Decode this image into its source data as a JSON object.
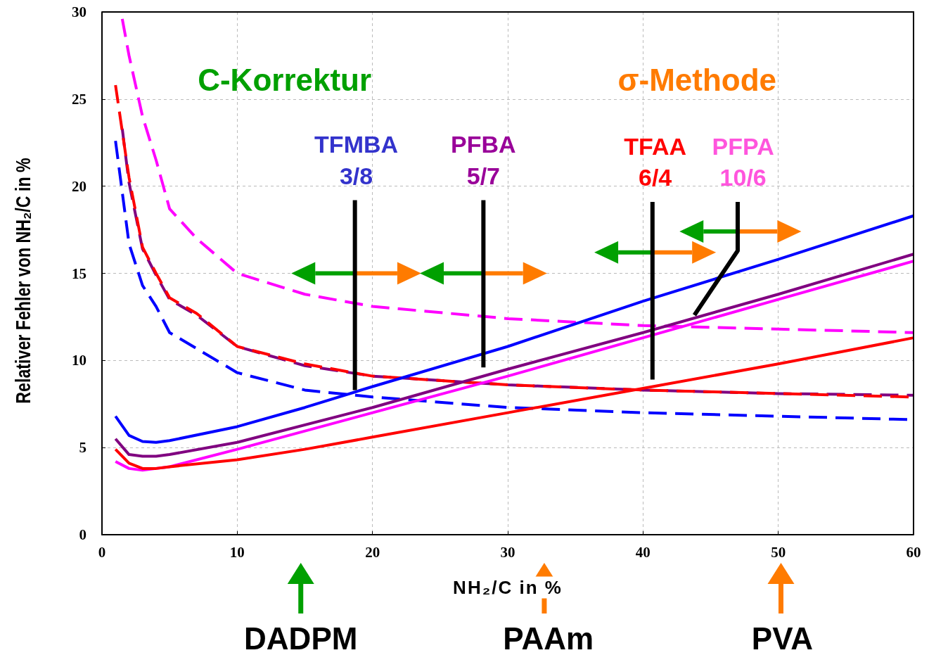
{
  "chart_data": {
    "type": "line",
    "xlabel": "NH₂/C in %",
    "ylabel": "Relativer Fehler von NH₂/C in %",
    "xlim": [
      0,
      60
    ],
    "xticks": [
      0,
      10,
      20,
      30,
      40,
      50,
      60
    ],
    "ylim": [
      0,
      30
    ],
    "yticks": [
      0,
      5,
      10,
      15,
      20,
      25,
      30
    ],
    "grid": true,
    "marker": "none",
    "series": [
      {
        "color": "#ff00ff",
        "line_style": "dashed",
        "x": [
          1.5,
          2,
          3,
          4,
          5,
          7,
          10,
          15,
          20,
          30,
          40,
          50,
          60
        ],
        "values": [
          29.6,
          27.5,
          24,
          21.5,
          18.7,
          17,
          15.0,
          13.8,
          13.1,
          12.4,
          12.0,
          11.8,
          11.6
        ]
      },
      {
        "color": "#800080",
        "line_style": "dashed",
        "x": [
          1.5,
          2,
          3,
          4,
          5,
          7,
          10,
          15,
          20,
          30,
          40,
          50,
          60
        ],
        "values": [
          23.3,
          20.2,
          16.4,
          14.9,
          13.5,
          12.6,
          10.8,
          9.7,
          9.1,
          8.6,
          8.3,
          8.1,
          8.0
        ]
      },
      {
        "color": "#ff0000",
        "line_style": "dashed",
        "x": [
          1,
          2,
          3,
          4,
          5,
          7,
          10,
          15,
          20,
          30,
          40,
          50,
          60
        ],
        "values": [
          25.8,
          20.5,
          16.5,
          15,
          13.6,
          12.7,
          10.8,
          9.8,
          9.1,
          8.6,
          8.3,
          8.1,
          7.9
        ]
      },
      {
        "color": "#0000ff",
        "line_style": "dashed",
        "x": [
          1,
          2,
          3,
          4,
          5,
          10,
          15,
          20,
          30,
          40,
          50,
          60
        ],
        "values": [
          22.6,
          16.7,
          14.3,
          13.1,
          11.6,
          9.3,
          8.3,
          7.9,
          7.3,
          7.0,
          6.8,
          6.6
        ]
      },
      {
        "color": "#0000ff",
        "line_style": "solid",
        "x": [
          1,
          2,
          3,
          4,
          5,
          10,
          15,
          20,
          30,
          40,
          50,
          60
        ],
        "values": [
          6.8,
          5.7,
          5.35,
          5.3,
          5.4,
          6.2,
          7.3,
          8.5,
          10.8,
          13.4,
          15.8,
          18.3
        ]
      },
      {
        "color": "#800080",
        "line_style": "solid",
        "x": [
          1,
          2,
          3,
          4,
          5,
          10,
          20,
          30,
          40,
          50,
          60
        ],
        "values": [
          5.5,
          4.6,
          4.5,
          4.5,
          4.6,
          5.3,
          7.3,
          9.5,
          11.6,
          13.8,
          16.1
        ]
      },
      {
        "color": "#ff00ff",
        "line_style": "solid",
        "x": [
          1,
          2,
          3,
          4,
          5,
          10,
          20,
          30,
          40,
          50,
          60
        ],
        "values": [
          4.2,
          3.8,
          3.7,
          3.8,
          3.9,
          4.9,
          7.0,
          9.1,
          11.3,
          13.5,
          15.7
        ]
      },
      {
        "color": "#ff0000",
        "line_style": "solid",
        "x": [
          1,
          2,
          3,
          4,
          5,
          10,
          15,
          20,
          30,
          40,
          50,
          60
        ],
        "values": [
          4.9,
          4.1,
          3.8,
          3.8,
          3.9,
          4.3,
          4.9,
          5.6,
          7.0,
          8.4,
          9.8,
          11.3
        ]
      }
    ],
    "annotations": [
      "C-Korrektur",
      "σ-Methode",
      "TFMBA",
      {
        "text": "3/8",
        "x": 18.7,
        "y": 8.3
      },
      "PFBA",
      "5/7",
      "TFAA",
      "6/4",
      "PFPA",
      {
        "text": "10/6",
        "x": 43.8,
        "y": 12.6
      },
      "DADPM",
      "PAAm",
      "PVA"
    ]
  }
}
